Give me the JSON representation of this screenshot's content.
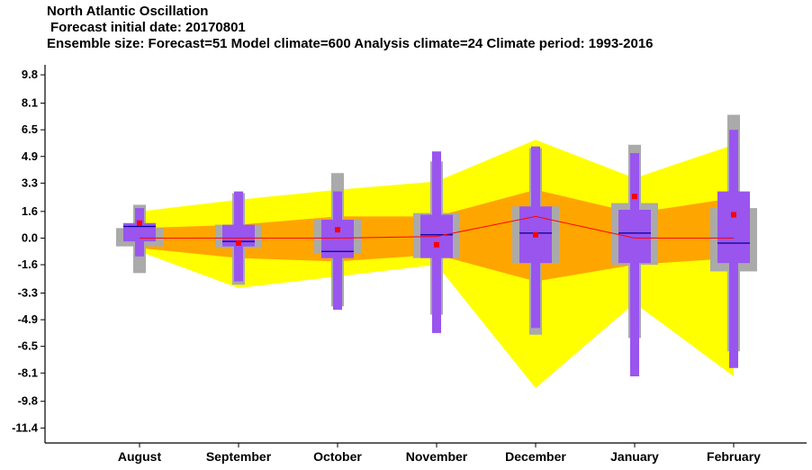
{
  "title": "North Atlantic Oscillation",
  "subtitle": "Forecast initial date: 20170801",
  "info": "Ensemble size: Forecast=51 Model climate=600 Analysis climate=24   Climate period: 1993-2016",
  "colors": {
    "outer_band": "#ffff00",
    "inner_band": "#ffa500",
    "grey_box": "#aaaaaa",
    "purple_box": "#9955ee",
    "median_line": "#000099",
    "mean_line": "#ff0000",
    "mean_marker": "#ff0000"
  },
  "chart_data": {
    "type": "boxplot",
    "categories": [
      "August",
      "September",
      "October",
      "November",
      "December",
      "January",
      "February"
    ],
    "yticks": [
      "9.8",
      "8.1",
      "6.5",
      "4.9",
      "3.3",
      "1.6",
      "0.0",
      "-1.6",
      "-3.3",
      "-4.9",
      "-6.5",
      "-8.1",
      "-9.8",
      "-11.4"
    ],
    "ylim": [
      -12.3,
      10.4
    ],
    "climate_bands": {
      "outer_upper": [
        1.6,
        2.3,
        2.9,
        3.4,
        5.9,
        3.6,
        5.6
      ],
      "outer_lower": [
        -0.8,
        -3.0,
        -2.3,
        -1.6,
        -9.0,
        -3.9,
        -8.3
      ],
      "inner_upper": [
        0.6,
        0.8,
        1.3,
        1.3,
        2.9,
        1.5,
        2.4
      ],
      "inner_lower": [
        -0.6,
        -1.2,
        -1.4,
        -1.0,
        -2.6,
        -1.6,
        -1.2
      ]
    },
    "model_climate": {
      "max": [
        2.0,
        2.7,
        3.9,
        4.6,
        5.4,
        5.6,
        7.4
      ],
      "q_upper": [
        0.6,
        0.8,
        1.1,
        1.5,
        1.9,
        2.1,
        1.8
      ],
      "q_lower": [
        -0.5,
        -0.6,
        -0.9,
        -1.2,
        -1.5,
        -1.6,
        -2.0
      ],
      "min": [
        -2.1,
        -2.8,
        -4.1,
        -4.6,
        -5.8,
        -6.0,
        -6.8
      ]
    },
    "forecast": {
      "max": [
        1.8,
        2.8,
        2.8,
        5.2,
        5.5,
        5.1,
        6.5
      ],
      "q_upper": [
        0.9,
        0.8,
        1.1,
        1.4,
        1.9,
        1.7,
        2.8
      ],
      "median": [
        0.7,
        -0.2,
        -0.8,
        0.2,
        0.3,
        0.3,
        -0.3
      ],
      "q_lower": [
        -0.2,
        -0.5,
        -1.2,
        -1.2,
        -1.5,
        -1.5,
        -1.5
      ],
      "min": [
        -1.1,
        -2.6,
        -4.3,
        -5.7,
        -5.4,
        -8.3,
        -7.8
      ],
      "mean": [
        0.9,
        -0.3,
        0.5,
        -0.4,
        0.2,
        2.5,
        1.4
      ]
    },
    "mean_line": [
      0.0,
      0.0,
      0.0,
      0.1,
      1.3,
      0.0,
      0.0
    ]
  }
}
